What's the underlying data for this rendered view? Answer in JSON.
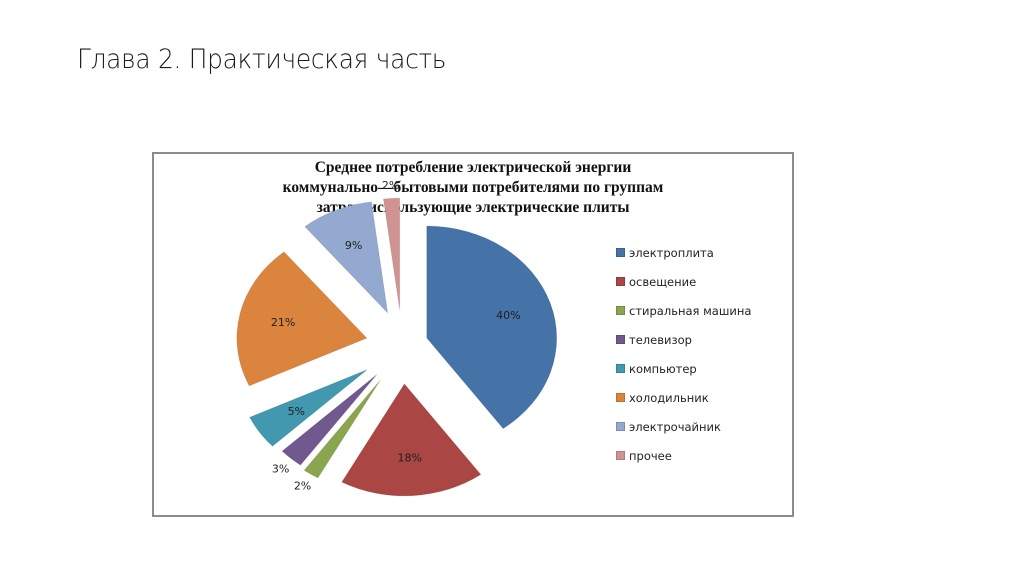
{
  "slide": {
    "title": "Глава 2. Практическая часть"
  },
  "chart_data": {
    "type": "pie",
    "title": "Среднее потребление электрической энергии коммунально—бытовыми потребителями по группам затрат, использующие электрические плиты",
    "title_lines": [
      "Среднее потребление электрической энергии",
      "коммунально—бытовыми потребителями по группам",
      "затрат, использующие электрические плиты"
    ],
    "categories": [
      "электроплита",
      "освещение",
      "стиральная машина",
      "телевизор",
      "компьютер",
      "холодильник",
      "электрочайник",
      "прочее"
    ],
    "values": [
      40,
      18,
      2,
      3,
      5,
      21,
      9,
      2
    ],
    "labels": [
      "40%",
      "18%",
      "2%",
      "3%",
      "5%",
      "21%",
      "9%",
      "2%"
    ],
    "colors": [
      "#4572A7",
      "#AA4643",
      "#89A54E",
      "#71588F",
      "#4198AF",
      "#DB843D",
      "#93A9CF",
      "#D19392"
    ],
    "exploded": true,
    "legend_position": "right",
    "start_angle": "12 o'clock, clockwise"
  },
  "legend": {
    "items": [
      {
        "label": "электроплита",
        "color": "#4572A7"
      },
      {
        "label": "освещение",
        "color": "#AA4643"
      },
      {
        "label": "стиральная машина",
        "color": "#89A54E"
      },
      {
        "label": "телевизор",
        "color": "#71588F"
      },
      {
        "label": "компьютер",
        "color": "#4198AF"
      },
      {
        "label": "холодильник",
        "color": "#DB843D"
      },
      {
        "label": "электрочайник",
        "color": "#93A9CF"
      },
      {
        "label": "прочее",
        "color": "#D19392"
      }
    ]
  }
}
